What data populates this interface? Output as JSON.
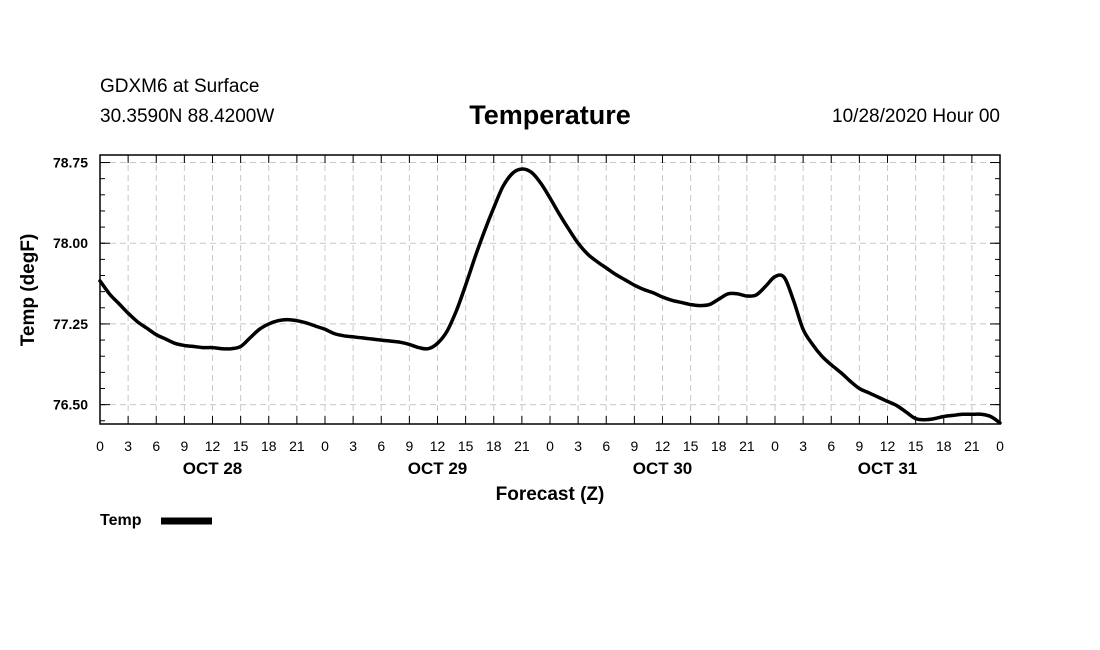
{
  "header": {
    "station": "GDXM6 at Surface",
    "coords": "30.3590N 88.4200W",
    "title": "Temperature",
    "date": "10/28/2020 Hour 00"
  },
  "chart_data": {
    "type": "line",
    "title": "Temperature",
    "xlabel": "Forecast (Z)",
    "ylabel": "Temp (degF)",
    "x_unit": "forecast hour",
    "xlim": [
      0,
      96
    ],
    "ylim": [
      76.32,
      78.82
    ],
    "y_ticks": [
      76.5,
      77.25,
      78.0,
      78.75
    ],
    "y_tick_labels": [
      "76.50",
      "77.25",
      "78.00",
      "78.75"
    ],
    "x_tick_labels": [
      "0",
      "3",
      "6",
      "9",
      "12",
      "15",
      "18",
      "21",
      "0",
      "3",
      "6",
      "9",
      "12",
      "15",
      "18",
      "21",
      "0",
      "3",
      "6",
      "9",
      "12",
      "15",
      "18",
      "21",
      "0",
      "3",
      "6",
      "9",
      "12",
      "15",
      "18",
      "21",
      "0"
    ],
    "day_labels": [
      {
        "label": "OCT 28",
        "hour": 12
      },
      {
        "label": "OCT 29",
        "hour": 36
      },
      {
        "label": "OCT 30",
        "hour": 60
      },
      {
        "label": "OCT 31",
        "hour": 84
      }
    ],
    "grid": true,
    "legend_position": "bottom-left",
    "series": [
      {
        "name": "Temp",
        "color": "#000000",
        "x": [
          0,
          1,
          2,
          3,
          4,
          5,
          6,
          7,
          8,
          9,
          10,
          11,
          12,
          13,
          14,
          15,
          16,
          17,
          18,
          19,
          20,
          21,
          22,
          23,
          24,
          25,
          26,
          27,
          28,
          29,
          30,
          31,
          32,
          33,
          34,
          35,
          36,
          37,
          38,
          39,
          40,
          41,
          42,
          43,
          44,
          45,
          46,
          47,
          48,
          49,
          50,
          51,
          52,
          53,
          54,
          55,
          56,
          57,
          58,
          59,
          60,
          61,
          62,
          63,
          64,
          65,
          66,
          67,
          68,
          69,
          70,
          71,
          72,
          73,
          74,
          75,
          76,
          77,
          78,
          79,
          80,
          81,
          82,
          83,
          84,
          85,
          86,
          87,
          88,
          89,
          90,
          91,
          92,
          93,
          94,
          95,
          96
        ],
        "values": [
          77.65,
          77.53,
          77.44,
          77.35,
          77.27,
          77.21,
          77.15,
          77.11,
          77.07,
          77.05,
          77.04,
          77.03,
          77.03,
          77.02,
          77.02,
          77.04,
          77.12,
          77.2,
          77.25,
          77.28,
          77.29,
          77.28,
          77.26,
          77.23,
          77.2,
          77.16,
          77.14,
          77.13,
          77.12,
          77.11,
          77.1,
          77.09,
          77.08,
          77.06,
          77.03,
          77.02,
          77.07,
          77.18,
          77.37,
          77.61,
          77.87,
          78.11,
          78.33,
          78.53,
          78.65,
          78.69,
          78.66,
          78.56,
          78.42,
          78.27,
          78.13,
          78.0,
          77.9,
          77.83,
          77.77,
          77.71,
          77.66,
          77.61,
          77.57,
          77.54,
          77.5,
          77.47,
          77.45,
          77.43,
          77.42,
          77.43,
          77.48,
          77.53,
          77.53,
          77.51,
          77.52,
          77.6,
          77.69,
          77.68,
          77.46,
          77.2,
          77.06,
          76.95,
          76.87,
          76.8,
          76.72,
          76.65,
          76.61,
          76.57,
          76.53,
          76.49,
          76.43,
          76.37,
          76.36,
          76.37,
          76.39,
          76.4,
          76.41,
          76.41,
          76.41,
          76.39,
          76.33
        ]
      }
    ]
  }
}
